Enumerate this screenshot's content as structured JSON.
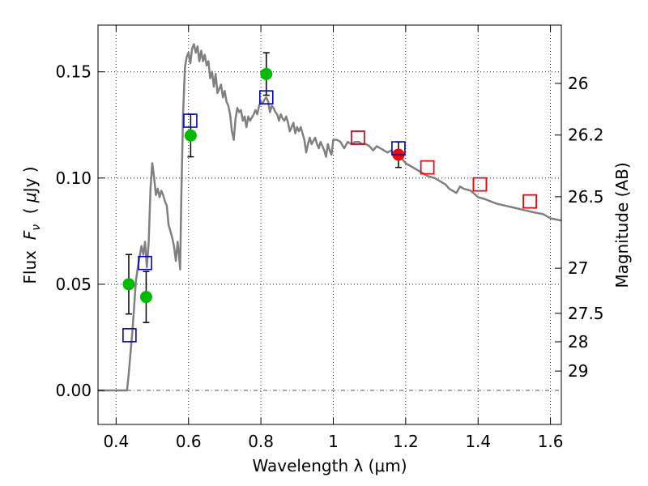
{
  "chart_data": {
    "type": "line",
    "xlabel": "Wavelength  λ (μm)",
    "ylabel_parts": [
      "Flux  ",
      "F",
      "ν",
      "  ( ",
      "μ",
      "Jy )"
    ],
    "ylabel2": "Magnitude (AB)",
    "xlim": [
      0.35,
      1.63
    ],
    "ylim": [
      -0.016,
      0.172
    ],
    "grid": true,
    "x_ticks": [
      {
        "value": 0.4,
        "label": "0.4"
      },
      {
        "value": 0.6,
        "label": "0.6"
      },
      {
        "value": 0.8,
        "label": "0.8"
      },
      {
        "value": 1.0,
        "label": "1"
      },
      {
        "value": 1.2,
        "label": "1.2"
      },
      {
        "value": 1.4,
        "label": "1.4"
      },
      {
        "value": 1.6,
        "label": "1.6"
      }
    ],
    "y_ticks": [
      {
        "value": 0.0,
        "label": "0.00"
      },
      {
        "value": 0.05,
        "label": "0.05"
      },
      {
        "value": 0.1,
        "label": "0.10"
      },
      {
        "value": 0.15,
        "label": "0.15"
      }
    ],
    "mag_ticks": [
      {
        "value": 26,
        "label": "26"
      },
      {
        "value": 26.2,
        "label": "26.2"
      },
      {
        "value": 26.5,
        "label": "26.5"
      },
      {
        "value": 27,
        "label": "27"
      },
      {
        "value": 27.5,
        "label": "27.5"
      },
      {
        "value": 28,
        "label": "28"
      },
      {
        "value": 29,
        "label": "29"
      }
    ],
    "zero_line": 0.0,
    "series": [
      {
        "style": "line",
        "color": "#808080",
        "points": [
          [
            0.35,
            0.0
          ],
          [
            0.43,
            0.0
          ],
          [
            0.435,
            0.008
          ],
          [
            0.44,
            0.018
          ],
          [
            0.445,
            0.028
          ],
          [
            0.45,
            0.04
          ],
          [
            0.455,
            0.052
          ],
          [
            0.46,
            0.058
          ],
          [
            0.465,
            0.063
          ],
          [
            0.47,
            0.068
          ],
          [
            0.475,
            0.064
          ],
          [
            0.48,
            0.07
          ],
          [
            0.485,
            0.058
          ],
          [
            0.49,
            0.07
          ],
          [
            0.495,
            0.095
          ],
          [
            0.5,
            0.107
          ],
          [
            0.505,
            0.1
          ],
          [
            0.51,
            0.092
          ],
          [
            0.515,
            0.095
          ],
          [
            0.52,
            0.091
          ],
          [
            0.525,
            0.094
          ],
          [
            0.53,
            0.092
          ],
          [
            0.535,
            0.089
          ],
          [
            0.54,
            0.087
          ],
          [
            0.545,
            0.078
          ],
          [
            0.55,
            0.075
          ],
          [
            0.555,
            0.072
          ],
          [
            0.56,
            0.068
          ],
          [
            0.565,
            0.061
          ],
          [
            0.57,
            0.07
          ],
          [
            0.574,
            0.063
          ],
          [
            0.577,
            0.057
          ],
          [
            0.58,
            0.09
          ],
          [
            0.585,
            0.13
          ],
          [
            0.59,
            0.152
          ],
          [
            0.595,
            0.157
          ],
          [
            0.6,
            0.159
          ],
          [
            0.605,
            0.154
          ],
          [
            0.61,
            0.161
          ],
          [
            0.615,
            0.163
          ],
          [
            0.62,
            0.159
          ],
          [
            0.625,
            0.162
          ],
          [
            0.63,
            0.155
          ],
          [
            0.635,
            0.16
          ],
          [
            0.64,
            0.155
          ],
          [
            0.645,
            0.158
          ],
          [
            0.65,
            0.153
          ],
          [
            0.655,
            0.155
          ],
          [
            0.66,
            0.147
          ],
          [
            0.665,
            0.15
          ],
          [
            0.67,
            0.143
          ],
          [
            0.675,
            0.149
          ],
          [
            0.68,
            0.14
          ],
          [
            0.69,
            0.144
          ],
          [
            0.695,
            0.138
          ],
          [
            0.7,
            0.141
          ],
          [
            0.705,
            0.136
          ],
          [
            0.71,
            0.134
          ],
          [
            0.715,
            0.13
          ],
          [
            0.72,
            0.122
          ],
          [
            0.725,
            0.118
          ],
          [
            0.73,
            0.128
          ],
          [
            0.735,
            0.133
          ],
          [
            0.74,
            0.131
          ],
          [
            0.745,
            0.132
          ],
          [
            0.75,
            0.127
          ],
          [
            0.755,
            0.129
          ],
          [
            0.76,
            0.124
          ],
          [
            0.765,
            0.129
          ],
          [
            0.77,
            0.127
          ],
          [
            0.78,
            0.13
          ],
          [
            0.785,
            0.132
          ],
          [
            0.79,
            0.13
          ],
          [
            0.795,
            0.134
          ],
          [
            0.8,
            0.136
          ],
          [
            0.805,
            0.135
          ],
          [
            0.81,
            0.137
          ],
          [
            0.815,
            0.138
          ],
          [
            0.82,
            0.136
          ],
          [
            0.825,
            0.131
          ],
          [
            0.83,
            0.134
          ],
          [
            0.835,
            0.133
          ],
          [
            0.84,
            0.131
          ],
          [
            0.845,
            0.13
          ],
          [
            0.85,
            0.127
          ],
          [
            0.855,
            0.13
          ],
          [
            0.86,
            0.128
          ],
          [
            0.865,
            0.127
          ],
          [
            0.87,
            0.129
          ],
          [
            0.875,
            0.126
          ],
          [
            0.88,
            0.122
          ],
          [
            0.885,
            0.124
          ],
          [
            0.89,
            0.126
          ],
          [
            0.895,
            0.121
          ],
          [
            0.9,
            0.124
          ],
          [
            0.905,
            0.122
          ],
          [
            0.91,
            0.124
          ],
          [
            0.915,
            0.121
          ],
          [
            0.92,
            0.118
          ],
          [
            0.925,
            0.112
          ],
          [
            0.93,
            0.116
          ],
          [
            0.935,
            0.119
          ],
          [
            0.94,
            0.116
          ],
          [
            0.95,
            0.119
          ],
          [
            0.955,
            0.116
          ],
          [
            0.96,
            0.114
          ],
          [
            0.965,
            0.117
          ],
          [
            0.97,
            0.115
          ],
          [
            0.975,
            0.113
          ],
          [
            0.98,
            0.11
          ],
          [
            0.985,
            0.116
          ],
          [
            0.99,
            0.113
          ],
          [
            0.995,
            0.111
          ],
          [
            1.0,
            0.118
          ],
          [
            1.01,
            0.118
          ],
          [
            1.02,
            0.117
          ],
          [
            1.03,
            0.114
          ],
          [
            1.04,
            0.117
          ],
          [
            1.05,
            0.116
          ],
          [
            1.06,
            0.117
          ],
          [
            1.07,
            0.117
          ],
          [
            1.08,
            0.116
          ],
          [
            1.09,
            0.116
          ],
          [
            1.1,
            0.115
          ],
          [
            1.11,
            0.113
          ],
          [
            1.12,
            0.115
          ],
          [
            1.13,
            0.114
          ],
          [
            1.14,
            0.113
          ],
          [
            1.15,
            0.112
          ],
          [
            1.16,
            0.113
          ],
          [
            1.17,
            0.111
          ],
          [
            1.18,
            0.11
          ],
          [
            1.19,
            0.109
          ],
          [
            1.2,
            0.107
          ],
          [
            1.22,
            0.105
          ],
          [
            1.24,
            0.103
          ],
          [
            1.25,
            0.102
          ],
          [
            1.26,
            0.101
          ],
          [
            1.28,
            0.1
          ],
          [
            1.3,
            0.098
          ],
          [
            1.31,
            0.097
          ],
          [
            1.32,
            0.095
          ],
          [
            1.33,
            0.094
          ],
          [
            1.34,
            0.093
          ],
          [
            1.35,
            0.096
          ],
          [
            1.36,
            0.095
          ],
          [
            1.38,
            0.094
          ],
          [
            1.4,
            0.091
          ],
          [
            1.42,
            0.09
          ],
          [
            1.45,
            0.088
          ],
          [
            1.5,
            0.086
          ],
          [
            1.55,
            0.084
          ],
          [
            1.58,
            0.083
          ],
          [
            1.6,
            0.081
          ],
          [
            1.63,
            0.08
          ]
        ]
      },
      {
        "style": "marker-circle",
        "color": "#00bb00",
        "points": [
          [
            0.435,
            0.05
          ],
          [
            0.483,
            0.044
          ],
          [
            0.606,
            0.12
          ],
          [
            0.815,
            0.149
          ]
        ],
        "errors": [
          0.014,
          0.012,
          0.01,
          0.01
        ]
      },
      {
        "style": "marker-circle",
        "color": "#ff0000",
        "points": [
          [
            1.18,
            0.111
          ]
        ],
        "errors": [
          0.006
        ]
      },
      {
        "style": "marker-square",
        "color": "#0000cc",
        "points": [
          [
            0.437,
            0.026
          ],
          [
            0.48,
            0.06
          ],
          [
            0.605,
            0.127
          ],
          [
            0.815,
            0.138
          ],
          [
            1.068,
            0.119
          ],
          [
            1.18,
            0.114
          ],
          [
            1.26,
            0.105
          ],
          [
            1.405,
            0.097
          ],
          [
            1.543,
            0.089
          ]
        ]
      },
      {
        "style": "marker-square",
        "color": "#ff0000",
        "points": [
          [
            1.068,
            0.119
          ],
          [
            1.26,
            0.105
          ],
          [
            1.405,
            0.097
          ],
          [
            1.543,
            0.089
          ]
        ]
      }
    ]
  }
}
